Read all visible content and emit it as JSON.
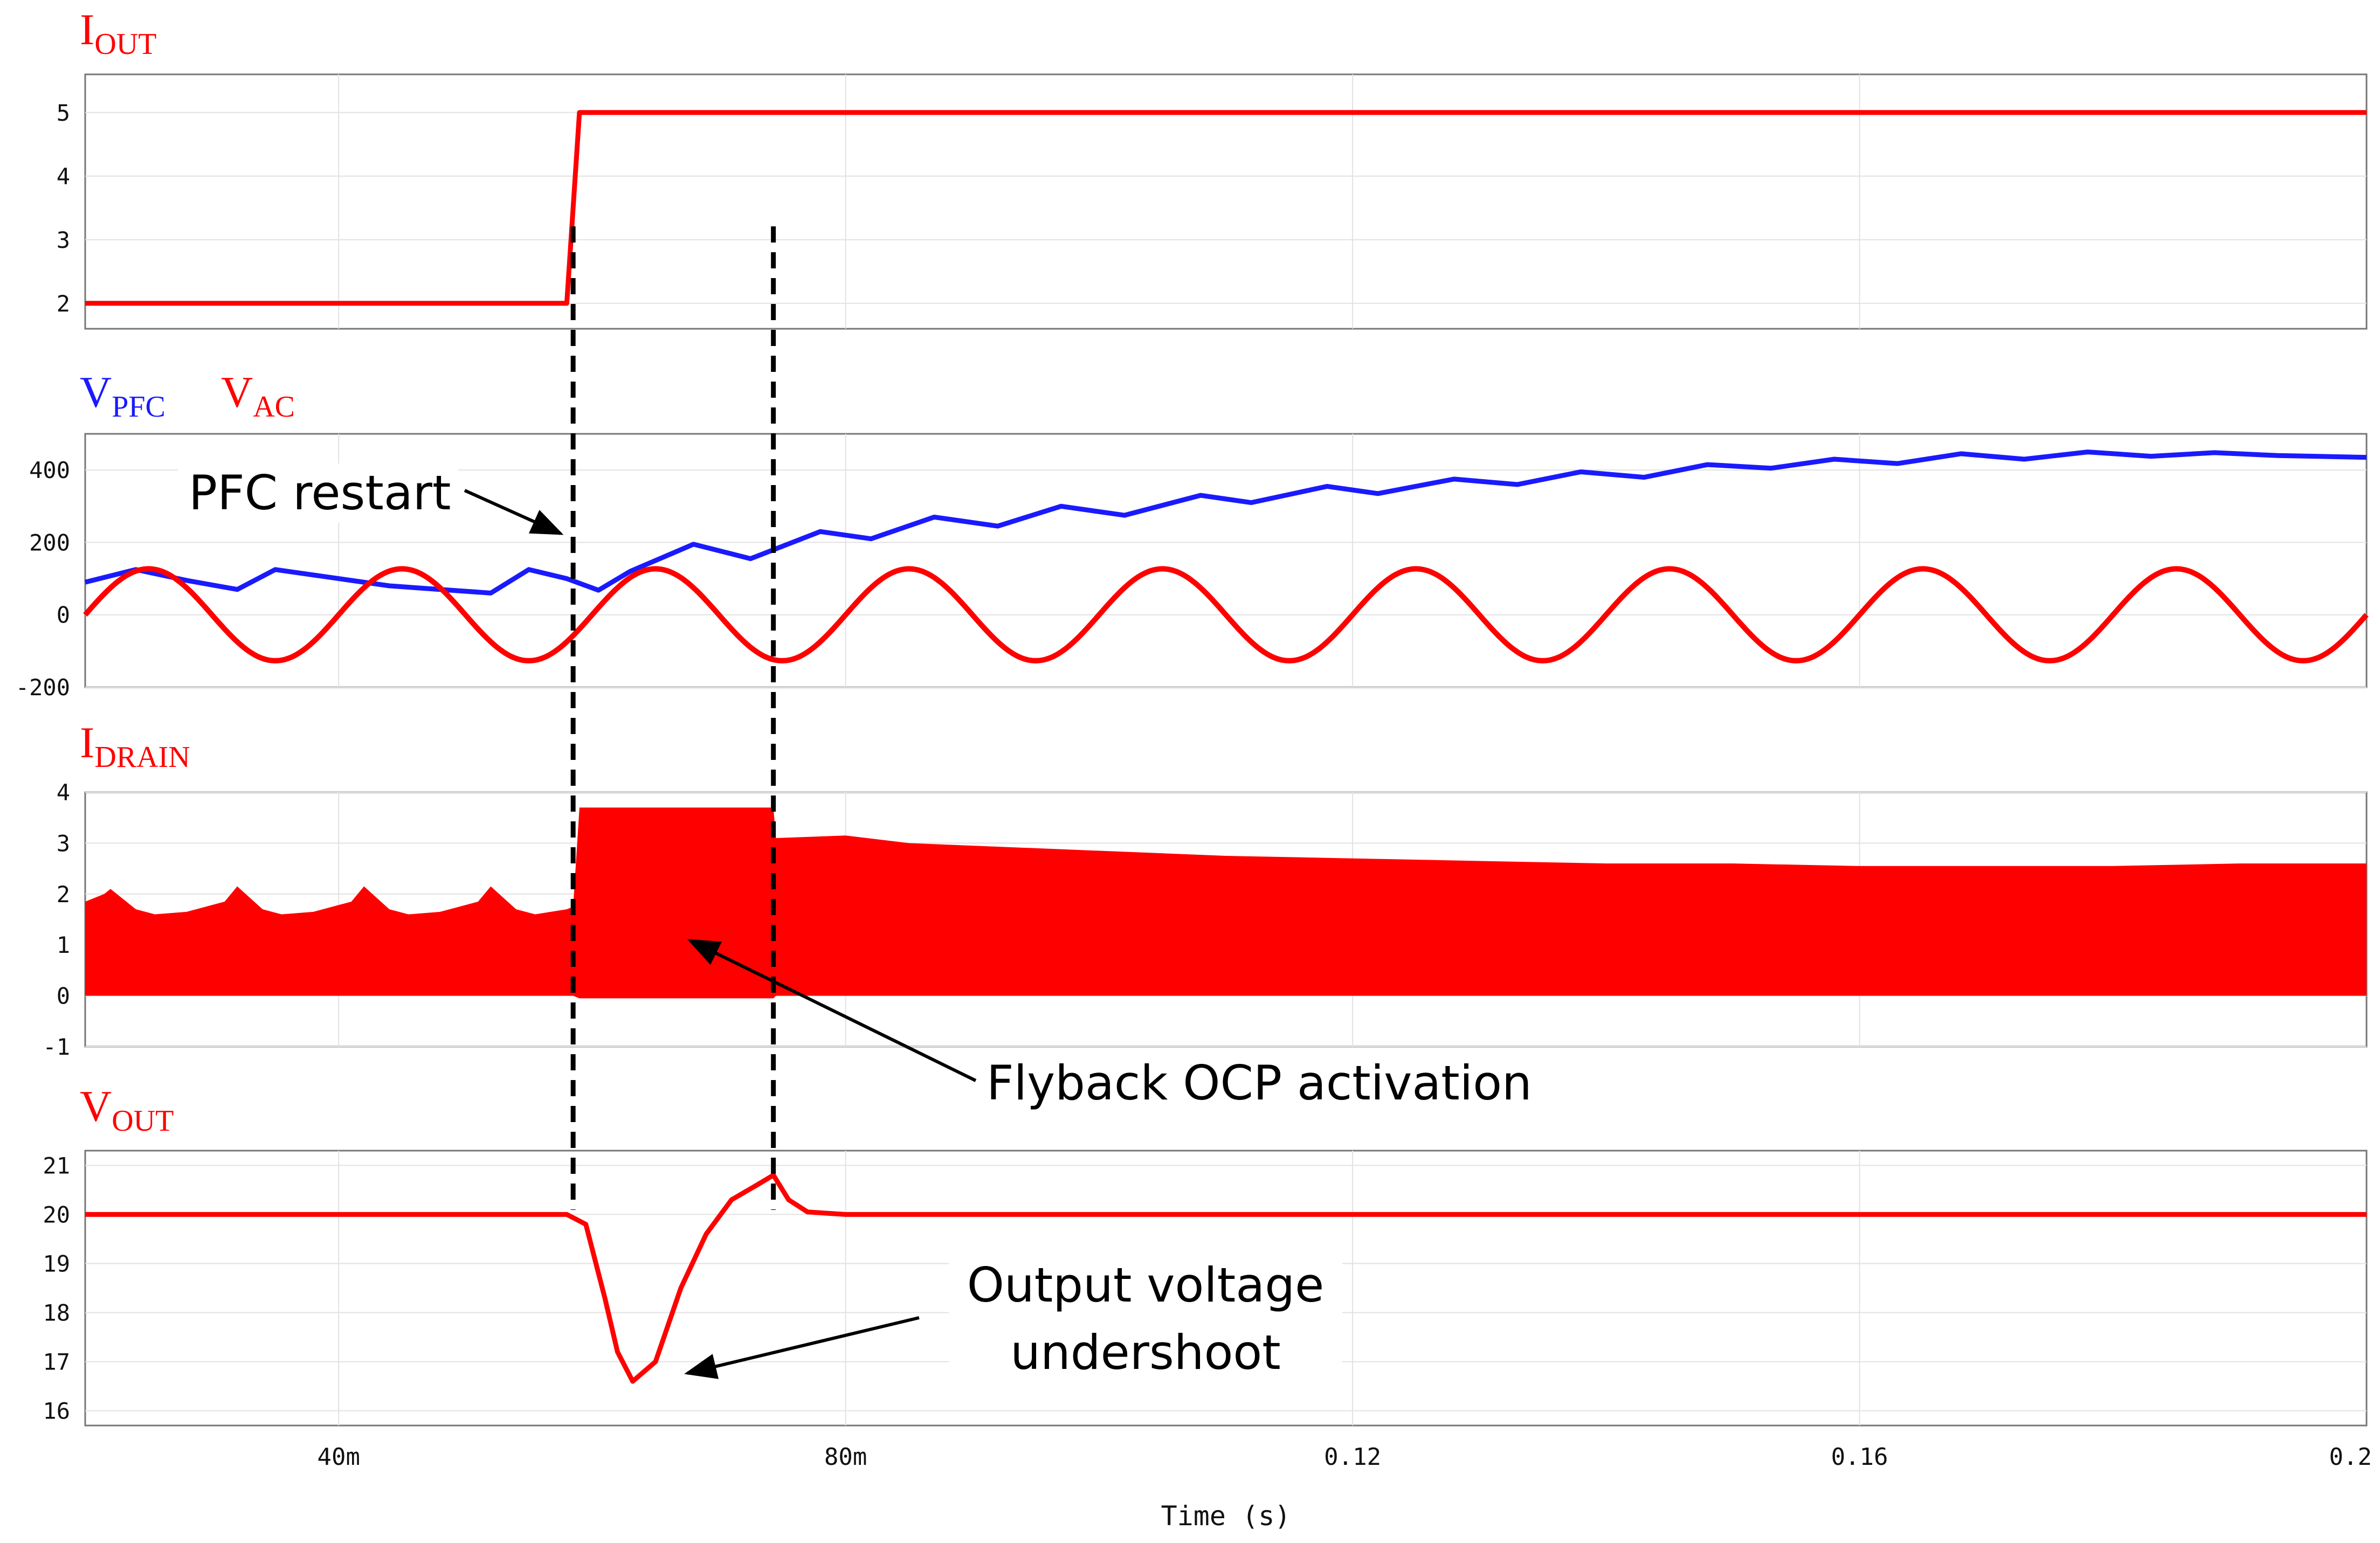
{
  "chart_data": {
    "type": "line",
    "xlabel": "Time (s)",
    "xlim": [
      0.02,
      0.2
    ],
    "x_ticks": [
      {
        "value": 0.04,
        "label": "40m"
      },
      {
        "value": 0.08,
        "label": "80m"
      },
      {
        "value": 0.12,
        "label": "0.12"
      },
      {
        "value": 0.16,
        "label": "0.16"
      },
      {
        "value": 0.2,
        "label": "0.2"
      }
    ],
    "colors": {
      "red": "#ff0000",
      "blue": "#1a1aff",
      "black": "#000000"
    },
    "markers": [
      0.0585,
      0.0743
    ],
    "panels": [
      {
        "id": "iout",
        "signal": "I",
        "signal_sub": "OUT",
        "ylim": [
          1.6,
          5.6
        ],
        "yticks": [
          2,
          3,
          4,
          5
        ],
        "series": [
          {
            "name": "I_OUT",
            "color": "#ff0000",
            "points": [
              [
                0.02,
                2
              ],
              [
                0.058,
                2
              ],
              [
                0.059,
                5
              ],
              [
                0.2,
                5
              ]
            ]
          }
        ]
      },
      {
        "id": "vpfc",
        "signals": [
          {
            "main": "V",
            "sub": "PFC",
            "color": "#1a1aff"
          },
          {
            "main": "V",
            "sub": "AC",
            "color": "#ff0000"
          }
        ],
        "ylim": [
          -200,
          500
        ],
        "yticks": [
          -200,
          0,
          200,
          400
        ],
        "series": [
          {
            "name": "V_PFC",
            "color": "#1a1aff",
            "points": [
              [
                0.02,
                90
              ],
              [
                0.024,
                125
              ],
              [
                0.028,
                95
              ],
              [
                0.032,
                70
              ],
              [
                0.035,
                125
              ],
              [
                0.04,
                100
              ],
              [
                0.044,
                80
              ],
              [
                0.048,
                70
              ],
              [
                0.052,
                60
              ],
              [
                0.055,
                125
              ],
              [
                0.058,
                100
              ],
              [
                0.0605,
                68
              ],
              [
                0.063,
                120
              ],
              [
                0.068,
                195
              ],
              [
                0.0725,
                155
              ],
              [
                0.078,
                230
              ],
              [
                0.082,
                210
              ],
              [
                0.087,
                270
              ],
              [
                0.092,
                245
              ],
              [
                0.097,
                300
              ],
              [
                0.102,
                275
              ],
              [
                0.108,
                330
              ],
              [
                0.112,
                310
              ],
              [
                0.118,
                355
              ],
              [
                0.122,
                335
              ],
              [
                0.128,
                375
              ],
              [
                0.133,
                360
              ],
              [
                0.138,
                395
              ],
              [
                0.143,
                380
              ],
              [
                0.148,
                415
              ],
              [
                0.153,
                405
              ],
              [
                0.158,
                430
              ],
              [
                0.163,
                418
              ],
              [
                0.168,
                445
              ],
              [
                0.173,
                430
              ],
              [
                0.178,
                450
              ],
              [
                0.183,
                438
              ],
              [
                0.188,
                448
              ],
              [
                0.193,
                440
              ],
              [
                0.2,
                435
              ]
            ]
          },
          {
            "name": "V_AC",
            "color": "#ff0000",
            "amplitude": 127,
            "period": 0.02,
            "phase_start": 0.02
          }
        ]
      },
      {
        "id": "idrain",
        "signal": "I",
        "signal_sub": "DRAIN",
        "ylim": [
          -1,
          4
        ],
        "yticks": [
          -1,
          0,
          1,
          2,
          3,
          4
        ],
        "series": [
          {
            "name": "I_DRAIN envelope",
            "color": "#ff0000",
            "fill": true,
            "top": [
              [
                0.02,
                1.85
              ],
              [
                0.0215,
                2.0
              ],
              [
                0.022,
                2.1
              ],
              [
                0.024,
                1.7
              ],
              [
                0.0255,
                1.6
              ],
              [
                0.028,
                1.65
              ],
              [
                0.031,
                1.85
              ],
              [
                0.032,
                2.15
              ],
              [
                0.034,
                1.7
              ],
              [
                0.0355,
                1.6
              ],
              [
                0.038,
                1.65
              ],
              [
                0.041,
                1.85
              ],
              [
                0.042,
                2.15
              ],
              [
                0.044,
                1.7
              ],
              [
                0.0455,
                1.6
              ],
              [
                0.048,
                1.65
              ],
              [
                0.051,
                1.85
              ],
              [
                0.052,
                2.15
              ],
              [
                0.054,
                1.7
              ],
              [
                0.0555,
                1.6
              ],
              [
                0.058,
                1.7
              ],
              [
                0.0585,
                1.75
              ],
              [
                0.059,
                3.7
              ],
              [
                0.0743,
                3.7
              ],
              [
                0.0745,
                3.1
              ],
              [
                0.08,
                3.15
              ],
              [
                0.085,
                3.0
              ],
              [
                0.09,
                2.95
              ],
              [
                0.1,
                2.85
              ],
              [
                0.11,
                2.75
              ],
              [
                0.12,
                2.7
              ],
              [
                0.13,
                2.65
              ],
              [
                0.14,
                2.6
              ],
              [
                0.15,
                2.6
              ],
              [
                0.16,
                2.55
              ],
              [
                0.17,
                2.55
              ],
              [
                0.18,
                2.55
              ],
              [
                0.19,
                2.6
              ],
              [
                0.2,
                2.6
              ]
            ],
            "bottom": [
              [
                0.02,
                0
              ],
              [
                0.0585,
                0
              ],
              [
                0.059,
                -0.05
              ],
              [
                0.0743,
                -0.05
              ],
              [
                0.0745,
                0
              ],
              [
                0.2,
                0
              ]
            ]
          }
        ]
      },
      {
        "id": "vout",
        "signal": "V",
        "signal_sub": "OUT",
        "ylim": [
          15.7,
          21.3
        ],
        "yticks": [
          16,
          17,
          18,
          19,
          20,
          21
        ],
        "series": [
          {
            "name": "V_OUT",
            "color": "#ff0000",
            "points": [
              [
                0.02,
                20
              ],
              [
                0.058,
                20
              ],
              [
                0.0595,
                19.8
              ],
              [
                0.061,
                18.3
              ],
              [
                0.062,
                17.2
              ],
              [
                0.0632,
                16.6
              ],
              [
                0.065,
                17.0
              ],
              [
                0.067,
                18.5
              ],
              [
                0.069,
                19.6
              ],
              [
                0.071,
                20.3
              ],
              [
                0.073,
                20.6
              ],
              [
                0.0743,
                20.8
              ],
              [
                0.0755,
                20.3
              ],
              [
                0.077,
                20.05
              ],
              [
                0.08,
                20
              ],
              [
                0.2,
                20
              ]
            ]
          }
        ]
      }
    ],
    "annotations": [
      {
        "id": "pfc-restart",
        "text": "PFC restart"
      },
      {
        "id": "flyback-ocp",
        "text": "Flyback OCP activation"
      },
      {
        "id": "undershoot",
        "lines": [
          "Output voltage",
          "undershoot"
        ]
      }
    ]
  }
}
